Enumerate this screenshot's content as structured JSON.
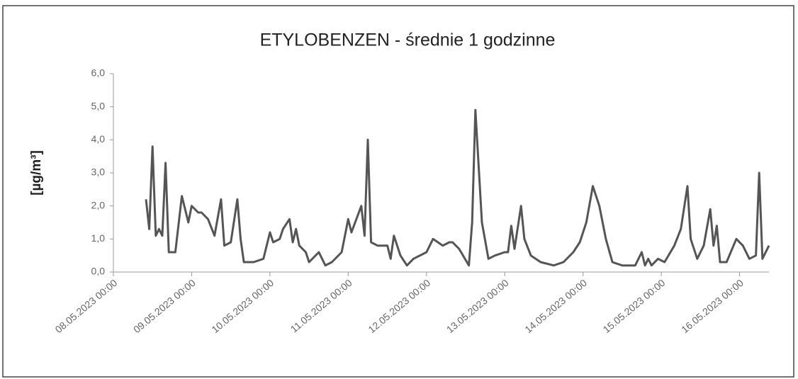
{
  "chart_data": {
    "type": "line",
    "title": "ETYLOBENZEN - średnie 1 godzinne",
    "y_label": "[µg/m³]",
    "xlim": [
      "08.05.2023 00:00",
      "16.05.2023 09:00"
    ],
    "xticks": [
      "08.05.2023 00:00",
      "09.05.2023 00:00",
      "10.05.2023 00:00",
      "11.05.2023 00:00",
      "12.05.2023 00:00",
      "13.05.2023 00:00",
      "14.05.2023 00:00",
      "15.05.2023 00:00",
      "16.05.2023 00:00"
    ],
    "ylim": [
      0,
      6
    ],
    "yticks": [
      {
        "value": 0,
        "label": "0,0"
      },
      {
        "value": 1,
        "label": "1,0"
      },
      {
        "value": 2,
        "label": "2,0"
      },
      {
        "value": 3,
        "label": "3,0"
      },
      {
        "value": 4,
        "label": "4,0"
      },
      {
        "value": 5,
        "label": "5,0"
      },
      {
        "value": 6,
        "label": "6,0"
      }
    ],
    "grid": false,
    "x": [
      "08.05.2023 10:00",
      "08.05.2023 11:00",
      "08.05.2023 12:00",
      "08.05.2023 13:00",
      "08.05.2023 14:00",
      "08.05.2023 15:00",
      "08.05.2023 16:00",
      "08.05.2023 17:00",
      "08.05.2023 19:00",
      "08.05.2023 21:00",
      "08.05.2023 23:00",
      "09.05.2023 00:00",
      "09.05.2023 02:00",
      "09.05.2023 03:00",
      "09.05.2023 05:00",
      "09.05.2023 07:00",
      "09.05.2023 09:00",
      "09.05.2023 10:00",
      "09.05.2023 12:00",
      "09.05.2023 14:00",
      "09.05.2023 15:00",
      "09.05.2023 16:00",
      "09.05.2023 19:00",
      "09.05.2023 22:00",
      "10.05.2023 00:00",
      "10.05.2023 01:00",
      "10.05.2023 03:00",
      "10.05.2023 04:00",
      "10.05.2023 06:00",
      "10.05.2023 07:00",
      "10.05.2023 08:00",
      "10.05.2023 09:00",
      "10.05.2023 11:00",
      "10.05.2023 12:00",
      "10.05.2023 15:00",
      "10.05.2023 17:00",
      "10.05.2023 19:00",
      "10.05.2023 22:00",
      "11.05.2023 00:00",
      "11.05.2023 01:00",
      "11.05.2023 04:00",
      "11.05.2023 05:00",
      "11.05.2023 06:00",
      "11.05.2023 07:00",
      "11.05.2023 09:00",
      "11.05.2023 12:00",
      "11.05.2023 13:00",
      "11.05.2023 14:00",
      "11.05.2023 16:00",
      "11.05.2023 18:00",
      "11.05.2023 20:00",
      "12.05.2023 00:00",
      "12.05.2023 02:00",
      "12.05.2023 05:00",
      "12.05.2023 07:00",
      "12.05.2023 08:00",
      "12.05.2023 10:00",
      "12.05.2023 13:00",
      "12.05.2023 14:00",
      "12.05.2023 15:00",
      "12.05.2023 17:00",
      "12.05.2023 19:00",
      "12.05.2023 21:00",
      "13.05.2023 00:00",
      "13.05.2023 01:00",
      "13.05.2023 02:00",
      "13.05.2023 03:00",
      "13.05.2023 05:00",
      "13.05.2023 06:00",
      "13.05.2023 08:00",
      "13.05.2023 11:00",
      "13.05.2023 15:00",
      "13.05.2023 18:00",
      "13.05.2023 21:00",
      "13.05.2023 23:00",
      "14.05.2023 01:00",
      "14.05.2023 03:00",
      "14.05.2023 05:00",
      "14.05.2023 07:00",
      "14.05.2023 09:00",
      "14.05.2023 12:00",
      "14.05.2023 16:00",
      "14.05.2023 18:00",
      "14.05.2023 19:00",
      "14.05.2023 20:00",
      "14.05.2023 21:00",
      "14.05.2023 23:00",
      "15.05.2023 01:00",
      "15.05.2023 04:00",
      "15.05.2023 06:00",
      "15.05.2023 08:00",
      "15.05.2023 09:00",
      "15.05.2023 11:00",
      "15.05.2023 13:00",
      "15.05.2023 15:00",
      "15.05.2023 16:00",
      "15.05.2023 17:00",
      "15.05.2023 18:00",
      "15.05.2023 20:00",
      "15.05.2023 23:00",
      "16.05.2023 01:00",
      "16.05.2023 03:00",
      "16.05.2023 05:00",
      "16.05.2023 06:00",
      "16.05.2023 07:00",
      "16.05.2023 09:00"
    ],
    "series": [
      {
        "color": "#555555",
        "values": [
          2.2,
          1.3,
          3.8,
          1.1,
          1.3,
          1.1,
          3.3,
          0.6,
          0.6,
          2.3,
          1.5,
          2.0,
          1.8,
          1.8,
          1.6,
          1.1,
          2.2,
          0.8,
          0.9,
          2.2,
          1.0,
          0.3,
          0.3,
          0.4,
          1.2,
          0.9,
          1.0,
          1.3,
          1.6,
          0.9,
          1.3,
          0.8,
          0.6,
          0.3,
          0.6,
          0.2,
          0.3,
          0.6,
          1.6,
          1.2,
          2.0,
          1.1,
          4.0,
          0.9,
          0.8,
          0.8,
          0.4,
          1.1,
          0.5,
          0.2,
          0.4,
          0.6,
          1.0,
          0.8,
          0.9,
          0.9,
          0.7,
          0.2,
          1.5,
          4.9,
          1.5,
          0.4,
          0.5,
          0.6,
          0.6,
          1.4,
          0.7,
          2.0,
          1.0,
          0.5,
          0.3,
          0.2,
          0.3,
          0.6,
          0.9,
          1.5,
          2.6,
          2.0,
          1.0,
          0.3,
          0.2,
          0.2,
          0.6,
          0.2,
          0.4,
          0.2,
          0.4,
          0.3,
          0.8,
          1.3,
          2.6,
          1.0,
          0.4,
          0.8,
          1.9,
          0.8,
          1.4,
          0.3,
          0.3,
          1.0,
          0.8,
          0.4,
          0.5,
          3.0,
          0.4,
          0.8
        ]
      }
    ]
  }
}
